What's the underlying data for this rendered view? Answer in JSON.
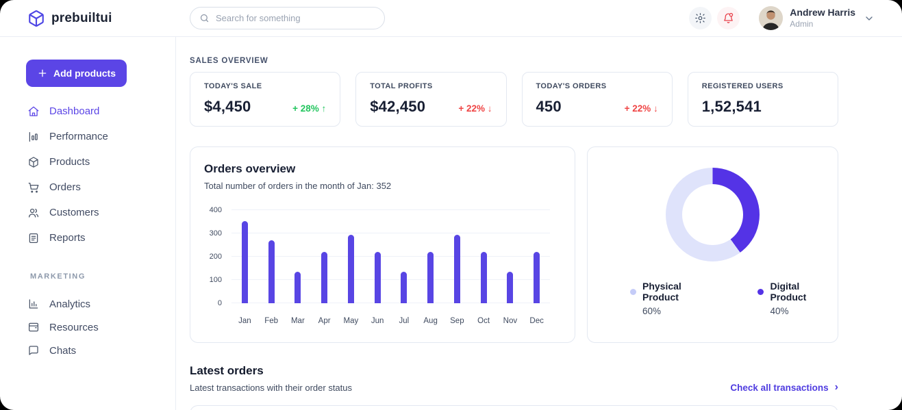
{
  "brand": {
    "name": "prebuiltui"
  },
  "topbar": {
    "search_placeholder": "Search for something",
    "user": {
      "name": "Andrew Harris",
      "role": "Admin"
    }
  },
  "sidebar": {
    "add_products_label": "Add products",
    "items": [
      {
        "label": "Dashboard",
        "active": true
      },
      {
        "label": "Performance",
        "active": false
      },
      {
        "label": "Products",
        "active": false
      },
      {
        "label": "Orders",
        "active": false
      },
      {
        "label": "Customers",
        "active": false
      },
      {
        "label": "Reports",
        "active": false
      }
    ],
    "marketing_label": "MARKETING",
    "marketing_items": [
      {
        "label": "Analytics"
      },
      {
        "label": "Resources"
      },
      {
        "label": "Chats"
      }
    ]
  },
  "overview": {
    "section_label": "SALES OVERVIEW",
    "cards": [
      {
        "label": "TODAY'S SALE",
        "value": "$4,450",
        "delta": "+ 28% ↑",
        "trend": "up"
      },
      {
        "label": "TOTAL PROFITS",
        "value": "$42,450",
        "delta": "+ 22% ↓",
        "trend": "down"
      },
      {
        "label": "TODAY'S ORDERS",
        "value": "450",
        "delta": "+ 22% ↓",
        "trend": "down"
      },
      {
        "label": "REGISTERED USERS",
        "value": "1,52,541",
        "delta": "",
        "trend": "none"
      }
    ]
  },
  "chart_data": [
    {
      "type": "bar",
      "title": "Orders overview",
      "subtitle": "Total number of orders in the month of Jan: 352",
      "categories": [
        "Jan",
        "Feb",
        "Mar",
        "Apr",
        "May",
        "Jun",
        "Jul",
        "Aug",
        "Sep",
        "Oct",
        "Nov",
        "Dec"
      ],
      "values": [
        352,
        270,
        135,
        220,
        295,
        220,
        135,
        220,
        295,
        220,
        135,
        220
      ],
      "xlabel": "",
      "ylabel": "",
      "ylim": [
        0,
        400
      ],
      "yticks": [
        0,
        100,
        200,
        300,
        400
      ],
      "bar_color": "#5845e4",
      "grid": true
    },
    {
      "type": "pie",
      "style": "donut",
      "start_angle_deg": 0,
      "slices": [
        {
          "label": "Digital Product",
          "value": 40,
          "color": "#5433e6"
        },
        {
          "label": "Physical Product",
          "value": 60,
          "color": "#dfe3fb"
        }
      ],
      "legend_position": "bottom",
      "legend": [
        {
          "label": "Physical Product",
          "pct": "60%",
          "dot_color": "#c5ccf8"
        },
        {
          "label": "Digital Product",
          "pct": "40%",
          "dot_color": "#5433e6"
        }
      ]
    }
  ],
  "latest_orders": {
    "title": "Latest orders",
    "subtitle": "Latest transactions with their order status",
    "link_label": "Check all transactions",
    "link_arrow": "›"
  },
  "colors": {
    "accent": "#5b45e6",
    "positive": "#22c55e",
    "negative": "#ef4444",
    "bell": "#e8404a"
  }
}
